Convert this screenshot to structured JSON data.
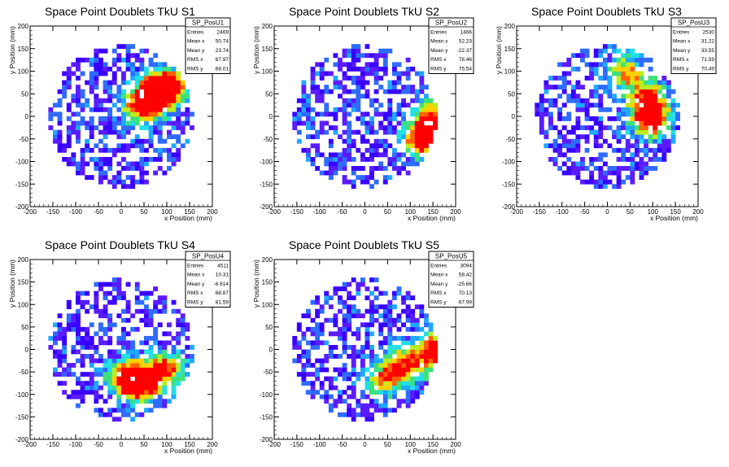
{
  "chart_data": [
    {
      "type": "heatmap",
      "title": "Space Point Doublets TkU S1",
      "xlabel": "x Position (mm)",
      "ylabel": "y Position (mm)",
      "xlim": [
        -200,
        200
      ],
      "ylim": [
        -200,
        200
      ],
      "xticks": [
        -200,
        -150,
        -100,
        -50,
        0,
        50,
        100,
        150,
        200
      ],
      "yticks": [
        -200,
        -150,
        -100,
        -50,
        0,
        50,
        100,
        150,
        200
      ],
      "stats": {
        "name": "SP_PosU1",
        "rows": [
          {
            "label": "Entries",
            "value": "2469"
          },
          {
            "label": "Mean x",
            "value": "50.74"
          },
          {
            "label": "Mean y",
            "value": "23.74"
          },
          {
            "label": "RMS x",
            "value": "67.97"
          },
          {
            "label": "RMS y",
            "value": "68.01"
          }
        ]
      },
      "hotspots": [
        {
          "x": 75,
          "y": 50,
          "strength": 1.0
        },
        {
          "x": 105,
          "y": 65,
          "strength": 0.9
        },
        {
          "x": 40,
          "y": 20,
          "strength": 0.7
        }
      ]
    },
    {
      "type": "heatmap",
      "title": "Space Point Doublets TkU S2",
      "xlabel": "x Position (mm)",
      "ylabel": "y Position (mm)",
      "xlim": [
        -200,
        200
      ],
      "ylim": [
        -200,
        200
      ],
      "xticks": [
        -200,
        -150,
        -100,
        -50,
        0,
        50,
        100,
        150,
        200
      ],
      "yticks": [
        -200,
        -150,
        -100,
        -50,
        0,
        50,
        100,
        150,
        200
      ],
      "stats": {
        "name": "SP_PosU2",
        "rows": [
          {
            "label": "Entries",
            "value": "1466"
          },
          {
            "label": "Mean x",
            "value": "52.23"
          },
          {
            "label": "Mean y",
            "value": "-22.37"
          },
          {
            "label": "RMS x",
            "value": "78.46"
          },
          {
            "label": "RMS y",
            "value": "75.54"
          }
        ]
      },
      "hotspots": [
        {
          "x": 130,
          "y": -50,
          "strength": 1.0
        },
        {
          "x": 145,
          "y": -5,
          "strength": 0.7
        }
      ]
    },
    {
      "type": "heatmap",
      "title": "Space Point Doublets TkU S3",
      "xlabel": "x Position (mm)",
      "ylabel": "y Position (mm)",
      "xlim": [
        -200,
        200
      ],
      "ylim": [
        -200,
        200
      ],
      "xticks": [
        -200,
        -150,
        -100,
        -50,
        0,
        50,
        100,
        150,
        200
      ],
      "yticks": [
        -200,
        -150,
        -100,
        -50,
        0,
        50,
        100,
        150,
        200
      ],
      "stats": {
        "name": "SP_PosU3",
        "rows": [
          {
            "label": "Entries",
            "value": "2530"
          },
          {
            "label": "Mean x",
            "value": "31.22"
          },
          {
            "label": "Mean y",
            "value": "33.55"
          },
          {
            "label": "RMS x",
            "value": "71.59"
          },
          {
            "label": "RMS y",
            "value": "70.49"
          }
        ]
      },
      "hotspots": [
        {
          "x": 95,
          "y": -5,
          "strength": 1.0
        },
        {
          "x": 90,
          "y": 40,
          "strength": 0.7
        },
        {
          "x": 40,
          "y": 95,
          "strength": 0.6
        }
      ]
    },
    {
      "type": "heatmap",
      "title": "Space Point Doublets TkU S4",
      "xlabel": "x Position (mm)",
      "ylabel": "y Position (mm)",
      "xlim": [
        -200,
        200
      ],
      "ylim": [
        -200,
        200
      ],
      "xticks": [
        -200,
        -150,
        -100,
        -50,
        0,
        50,
        100,
        150,
        200
      ],
      "yticks": [
        -200,
        -150,
        -100,
        -50,
        0,
        50,
        100,
        150,
        200
      ],
      "stats": {
        "name": "SP_PosU4",
        "rows": [
          {
            "label": "Entries",
            "value": "4511"
          },
          {
            "label": "Mean x",
            "value": "10.31"
          },
          {
            "label": "Mean y",
            "value": "-6.614"
          },
          {
            "label": "RMS x",
            "value": "68.87"
          },
          {
            "label": "RMS y",
            "value": "81.59"
          }
        ]
      },
      "hotspots": [
        {
          "x": 40,
          "y": -75,
          "strength": 1.0
        },
        {
          "x": 95,
          "y": -45,
          "strength": 0.8
        },
        {
          "x": 5,
          "y": -60,
          "strength": 0.6
        }
      ]
    },
    {
      "type": "heatmap",
      "title": "Space Point Doublets TkU S5",
      "xlabel": "x Position (mm)",
      "ylabel": "y Position (mm)",
      "xlim": [
        -200,
        200
      ],
      "ylim": [
        -200,
        200
      ],
      "xticks": [
        -200,
        -150,
        -100,
        -50,
        0,
        50,
        100,
        150,
        200
      ],
      "yticks": [
        -200,
        -150,
        -100,
        -50,
        0,
        50,
        100,
        150,
        200
      ],
      "stats": {
        "name": "SP_PosU5",
        "rows": [
          {
            "label": "Entries",
            "value": "3094"
          },
          {
            "label": "Mean x",
            "value": "58.42"
          },
          {
            "label": "Mean y",
            "value": "-25.66"
          },
          {
            "label": "RMS x",
            "value": "70.13"
          },
          {
            "label": "RMS y",
            "value": "67.99"
          }
        ]
      },
      "hotspots": [
        {
          "x": 155,
          "y": -5,
          "strength": 1.0
        },
        {
          "x": 90,
          "y": -35,
          "strength": 0.7
        },
        {
          "x": 40,
          "y": -65,
          "strength": 0.6
        }
      ]
    }
  ],
  "colors": {
    "frame": "#000000",
    "background": "#ffffff",
    "palette": [
      "#3a00ff",
      "#5a1cff",
      "#2f6bff",
      "#1fa8ff",
      "#21e0e6",
      "#3fe07a",
      "#b8ee20",
      "#ffd000",
      "#ff6000",
      "#ff0000"
    ]
  }
}
